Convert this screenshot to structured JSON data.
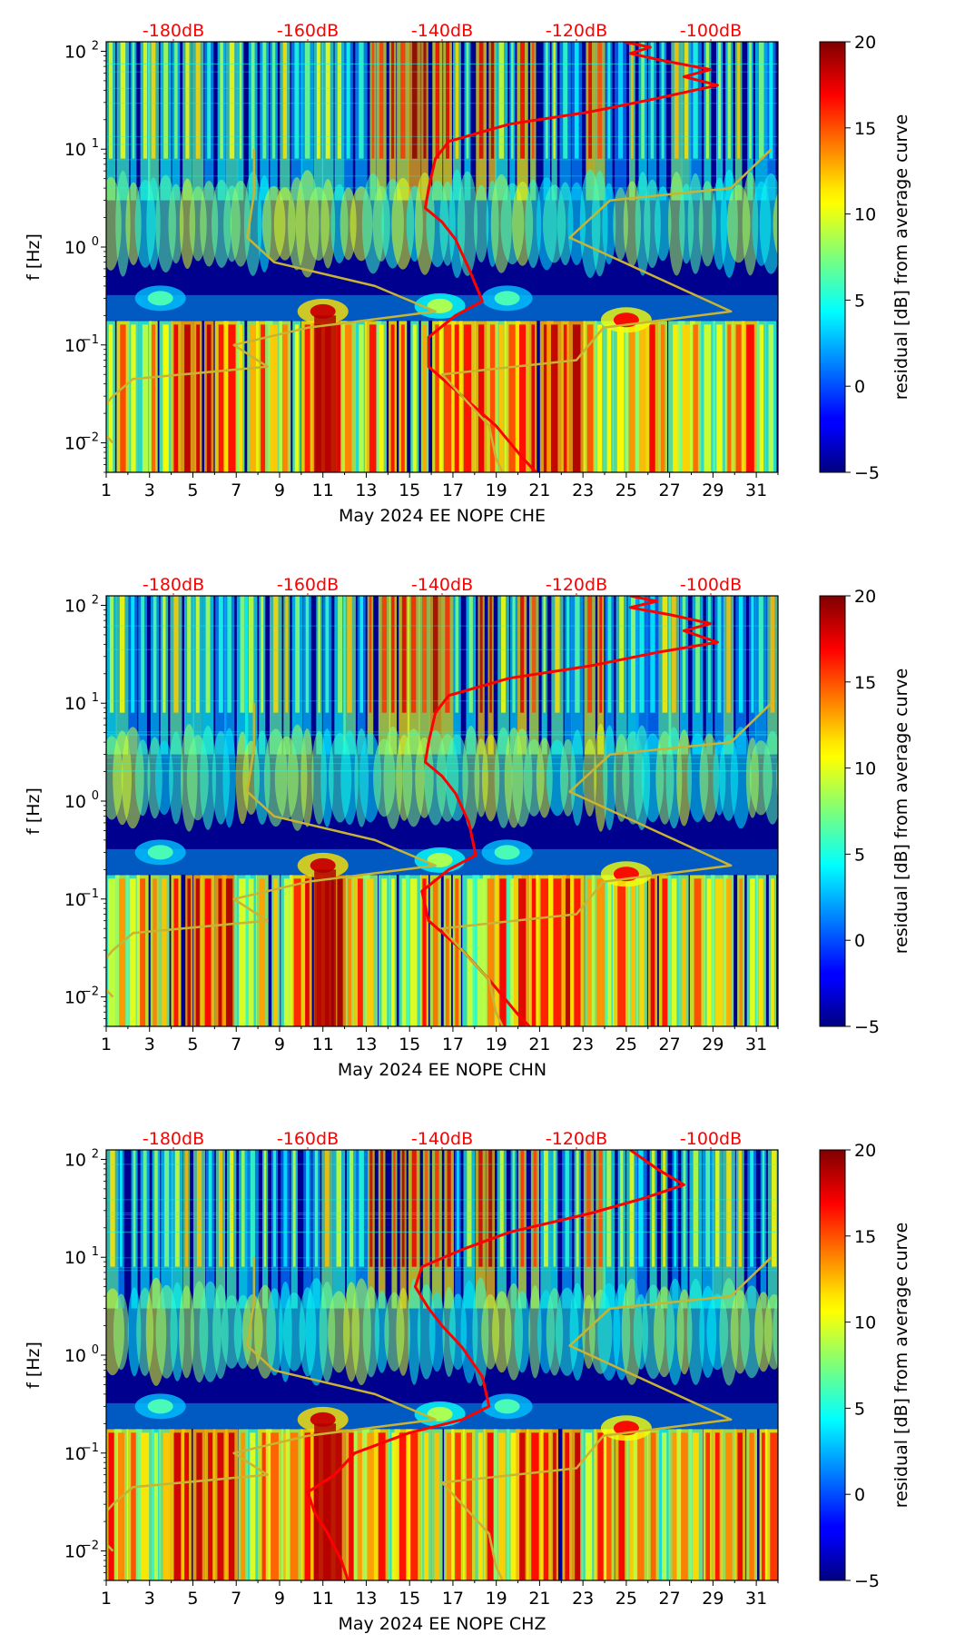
{
  "chart_data": [
    {
      "type": "heatmap",
      "xlabel": "May 2024 EE NOPE  CHE",
      "ylabel": "f [Hz]",
      "x_ticks": [
        "1",
        "3",
        "5",
        "7",
        "9",
        "11",
        "13",
        "15",
        "17",
        "19",
        "21",
        "23",
        "25",
        "27",
        "29",
        "31"
      ],
      "y_ticks": [
        {
          "label": "10",
          "exp": "−2",
          "value": 0.01
        },
        {
          "label": "10",
          "exp": "−1",
          "value": 0.1
        },
        {
          "label": "10",
          "exp": "0",
          "value": 1
        },
        {
          "label": "10",
          "exp": "1",
          "value": 10
        },
        {
          "label": "10",
          "exp": "2",
          "value": 100
        }
      ],
      "xlim": [
        1,
        32
      ],
      "ylim": [
        0.005,
        125
      ],
      "top_axis_labels": [
        "-180dB",
        "-160dB",
        "-140dB",
        "-120dB",
        "-100dB"
      ],
      "colorbar": {
        "label": "residual [dB] from average curve",
        "ticks": [
          "20",
          "15",
          "10",
          "5",
          "0",
          "−5"
        ],
        "range": [
          -5,
          20
        ]
      },
      "series": [
        {
          "name": "median PSD",
          "color": "#ff0000",
          "points": [
            [
              -113,
              125
            ],
            [
              -109,
              110
            ],
            [
              -112,
              95
            ],
            [
              -107,
              80
            ],
            [
              -100,
              65
            ],
            [
              -104,
              55
            ],
            [
              -99,
              45
            ],
            [
              -108,
              33
            ],
            [
              -118,
              24
            ],
            [
              -130,
              18
            ],
            [
              -139,
              12
            ],
            [
              -141,
              8
            ],
            [
              -142,
              4
            ],
            [
              -142.5,
              2.5
            ],
            [
              -140,
              1.8
            ],
            [
              -138,
              1.2
            ],
            [
              -136,
              0.6
            ],
            [
              -134,
              0.28
            ],
            [
              -138,
              0.2
            ],
            [
              -142,
              0.12
            ],
            [
              -142,
              0.06
            ],
            [
              -137,
              0.03
            ],
            [
              -132,
              0.015
            ],
            [
              -128,
              0.007
            ],
            [
              -126,
              0.005
            ]
          ]
        },
        {
          "name": "Peterson NLNM",
          "color": "#c8b432",
          "points": [
            [
              -168,
              10
            ],
            [
              -168,
              3.5
            ],
            [
              -169,
              1.25
            ],
            [
              -165,
              0.7
            ],
            [
              -150,
              0.4
            ],
            [
              -141,
              0.22
            ],
            [
              -160,
              0.15
            ],
            [
              -171,
              0.1
            ],
            [
              -166,
              0.06
            ],
            [
              -186,
              0.045
            ],
            [
              -189,
              0.03
            ],
            [
              -191,
              0.021
            ],
            [
              -191,
              0.014
            ],
            [
              -189,
              0.01
            ]
          ]
        },
        {
          "name": "Peterson NHNM",
          "color": "#c8b432",
          "points": [
            [
              -91,
              10
            ],
            [
              -97,
              4
            ],
            [
              -115,
              3
            ],
            [
              -121,
              1.25
            ],
            [
              -97,
              0.22
            ],
            [
              -116,
              0.15
            ],
            [
              -120,
              0.07
            ],
            [
              -140,
              0.05
            ],
            [
              -133,
              0.015
            ],
            [
              -132,
              0.007
            ],
            [
              -131,
              0.005
            ]
          ]
        }
      ]
    },
    {
      "type": "heatmap",
      "xlabel": "May 2024 EE NOPE  CHN",
      "ylabel": "f [Hz]",
      "x_ticks": [
        "1",
        "3",
        "5",
        "7",
        "9",
        "11",
        "13",
        "15",
        "17",
        "19",
        "21",
        "23",
        "25",
        "27",
        "29",
        "31"
      ],
      "y_ticks": [
        {
          "label": "10",
          "exp": "−2",
          "value": 0.01
        },
        {
          "label": "10",
          "exp": "−1",
          "value": 0.1
        },
        {
          "label": "10",
          "exp": "0",
          "value": 1
        },
        {
          "label": "10",
          "exp": "1",
          "value": 10
        },
        {
          "label": "10",
          "exp": "2",
          "value": 100
        }
      ],
      "xlim": [
        1,
        32
      ],
      "ylim": [
        0.005,
        125
      ],
      "top_axis_labels": [
        "-180dB",
        "-160dB",
        "-140dB",
        "-120dB",
        "-100dB"
      ],
      "colorbar": {
        "label": "residual [dB] from average curve",
        "ticks": [
          "20",
          "15",
          "10",
          "5",
          "0",
          "−5"
        ],
        "range": [
          -5,
          20
        ]
      },
      "series": [
        {
          "name": "median PSD",
          "color": "#ff0000",
          "points": [
            [
              -112,
              125
            ],
            [
              -108,
              110
            ],
            [
              -112,
              95
            ],
            [
              -106,
              80
            ],
            [
              -100,
              65
            ],
            [
              -104,
              55
            ],
            [
              -99,
              42
            ],
            [
              -108,
              33
            ],
            [
              -118,
              24
            ],
            [
              -130,
              18
            ],
            [
              -139,
              12
            ],
            [
              -141,
              8
            ],
            [
              -142,
              4
            ],
            [
              -142.5,
              2.5
            ],
            [
              -140,
              1.8
            ],
            [
              -138,
              1.2
            ],
            [
              -136,
              0.6
            ],
            [
              -135,
              0.28
            ],
            [
              -139,
              0.2
            ],
            [
              -143,
              0.12
            ],
            [
              -142,
              0.06
            ],
            [
              -137,
              0.03
            ],
            [
              -133,
              0.015
            ],
            [
              -129,
              0.007
            ],
            [
              -127,
              0.005
            ]
          ]
        },
        {
          "name": "Peterson NLNM",
          "color": "#c8b432",
          "points": [
            [
              -168,
              10
            ],
            [
              -168,
              3.5
            ],
            [
              -169,
              1.25
            ],
            [
              -165,
              0.7
            ],
            [
              -150,
              0.4
            ],
            [
              -141,
              0.22
            ],
            [
              -160,
              0.15
            ],
            [
              -171,
              0.1
            ],
            [
              -166,
              0.06
            ],
            [
              -186,
              0.045
            ],
            [
              -189,
              0.03
            ],
            [
              -191,
              0.021
            ],
            [
              -191,
              0.014
            ],
            [
              -189,
              0.01
            ]
          ]
        },
        {
          "name": "Peterson NHNM",
          "color": "#c8b432",
          "points": [
            [
              -91,
              10
            ],
            [
              -97,
              4
            ],
            [
              -115,
              3
            ],
            [
              -121,
              1.25
            ],
            [
              -97,
              0.22
            ],
            [
              -116,
              0.15
            ],
            [
              -120,
              0.07
            ],
            [
              -140,
              0.05
            ],
            [
              -133,
              0.015
            ],
            [
              -132,
              0.007
            ],
            [
              -131,
              0.005
            ]
          ]
        }
      ]
    },
    {
      "type": "heatmap",
      "xlabel": "May 2024 EE NOPE  CHZ",
      "ylabel": "f [Hz]",
      "x_ticks": [
        "1",
        "3",
        "5",
        "7",
        "9",
        "11",
        "13",
        "15",
        "17",
        "19",
        "21",
        "23",
        "25",
        "27",
        "29",
        "31"
      ],
      "y_ticks": [
        {
          "label": "10",
          "exp": "−2",
          "value": 0.01
        },
        {
          "label": "10",
          "exp": "−1",
          "value": 0.1
        },
        {
          "label": "10",
          "exp": "0",
          "value": 1
        },
        {
          "label": "10",
          "exp": "1",
          "value": 10
        },
        {
          "label": "10",
          "exp": "2",
          "value": 100
        }
      ],
      "xlim": [
        1,
        32
      ],
      "ylim": [
        0.005,
        125
      ],
      "top_axis_labels": [
        "-180dB",
        "-160dB",
        "-140dB",
        "-120dB",
        "-100dB"
      ],
      "colorbar": {
        "label": "residual [dB] from average curve",
        "ticks": [
          "20",
          "15",
          "10",
          "5",
          "0",
          "−5"
        ],
        "range": [
          -5,
          20
        ]
      },
      "series": [
        {
          "name": "median PSD",
          "color": "#ff0000",
          "points": [
            [
              -112,
              125
            ],
            [
              -110,
              100
            ],
            [
              -108,
              80
            ],
            [
              -104,
              55
            ],
            [
              -110,
              40
            ],
            [
              -118,
              28
            ],
            [
              -130,
              18
            ],
            [
              -137,
              12
            ],
            [
              -143,
              8
            ],
            [
              -144,
              5
            ],
            [
              -142,
              3
            ],
            [
              -140,
              2
            ],
            [
              -137,
              1.2
            ],
            [
              -134,
              0.6
            ],
            [
              -133,
              0.3
            ],
            [
              -137,
              0.22
            ],
            [
              -145,
              0.16
            ],
            [
              -153,
              0.1
            ],
            [
              -156,
              0.06
            ],
            [
              -160,
              0.04
            ],
            [
              -159,
              0.025
            ],
            [
              -157,
              0.015
            ],
            [
              -155,
              0.008
            ],
            [
              -154,
              0.005
            ]
          ]
        },
        {
          "name": "Peterson NLNM",
          "color": "#c8b432",
          "points": [
            [
              -168,
              10
            ],
            [
              -168,
              3.5
            ],
            [
              -169,
              1.25
            ],
            [
              -165,
              0.7
            ],
            [
              -150,
              0.4
            ],
            [
              -141,
              0.22
            ],
            [
              -160,
              0.15
            ],
            [
              -171,
              0.1
            ],
            [
              -166,
              0.06
            ],
            [
              -186,
              0.045
            ],
            [
              -189,
              0.03
            ],
            [
              -191,
              0.021
            ],
            [
              -191,
              0.014
            ],
            [
              -189,
              0.01
            ]
          ]
        },
        {
          "name": "Peterson NHNM",
          "color": "#c8b432",
          "points": [
            [
              -91,
              10
            ],
            [
              -97,
              4
            ],
            [
              -115,
              3
            ],
            [
              -121,
              1.25
            ],
            [
              -97,
              0.22
            ],
            [
              -116,
              0.15
            ],
            [
              -120,
              0.07
            ],
            [
              -140,
              0.05
            ],
            [
              -133,
              0.015
            ],
            [
              -132,
              0.007
            ],
            [
              -131,
              0.005
            ]
          ]
        }
      ]
    }
  ]
}
